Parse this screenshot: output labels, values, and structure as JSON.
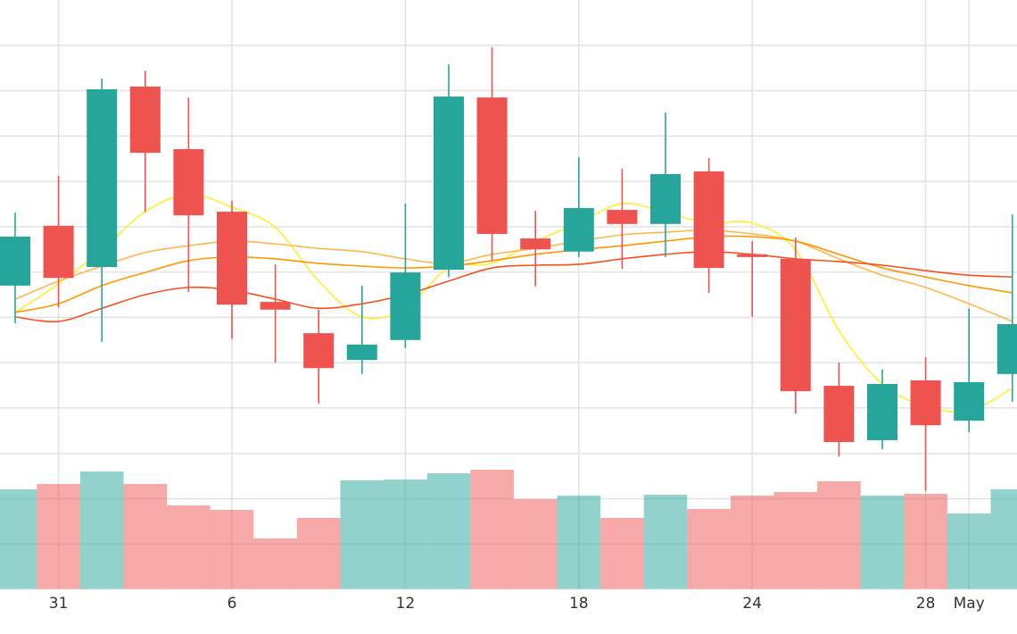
{
  "chart_data": {
    "type": "candlestick",
    "categories": [
      null,
      "31",
      null,
      null,
      null,
      "6",
      null,
      null,
      null,
      "12",
      null,
      null,
      null,
      "18",
      null,
      null,
      null,
      "24",
      null,
      null,
      null,
      "28",
      "May",
      null
    ],
    "open": [
      4.7,
      6.02,
      5.11,
      9.09,
      7.71,
      6.33,
      4.34,
      3.65,
      3.06,
      3.5,
      5.05,
      8.85,
      5.74,
      5.45,
      6.37,
      6.06,
      7.22,
      5.39,
      5.29,
      2.49,
      1.29,
      2.61,
      1.72,
      2.75
    ],
    "high": [
      6.31,
      7.12,
      9.27,
      9.44,
      8.85,
      6.57,
      5.17,
      4.17,
      4.7,
      6.51,
      9.58,
      9.96,
      6.35,
      7.53,
      7.28,
      8.52,
      7.51,
      5.68,
      5.76,
      3.0,
      2.85,
      3.12,
      4.2,
      6.27
    ],
    "low": [
      3.87,
      4.22,
      3.46,
      6.33,
      4.56,
      3.52,
      3.0,
      2.1,
      2.75,
      3.32,
      4.89,
      5.25,
      4.68,
      5.33,
      5.07,
      5.33,
      4.54,
      4.01,
      1.88,
      0.93,
      1.09,
      0.17,
      1.47,
      2.14
    ],
    "close": [
      5.78,
      4.87,
      9.03,
      7.63,
      6.25,
      4.28,
      4.17,
      2.88,
      3.4,
      4.99,
      8.87,
      5.84,
      5.5,
      6.41,
      6.06,
      7.16,
      5.09,
      5.33,
      2.37,
      1.25,
      2.53,
      1.62,
      2.57,
      3.85
    ],
    "up_color": "#26a69a",
    "down_color": "#ef5350",
    "ylim": [
      -2,
      11
    ],
    "yticks": [
      -1,
      0,
      1,
      2,
      3,
      4,
      5,
      6,
      7,
      8,
      9,
      10
    ],
    "grid": true,
    "volume": {
      "axis": "y2",
      "opacity": 0.5,
      "values": [
        11.2,
        11.8,
        13.2,
        11.8,
        9.4,
        8.9,
        5.7,
        8.0,
        12.2,
        12.3,
        13.0,
        13.4,
        10.1,
        10.5,
        8.0,
        10.6,
        9.0,
        10.5,
        10.9,
        12.1,
        10.5,
        10.7,
        8.5,
        11.2
      ]
    },
    "y2lim": [
      0,
      66
    ],
    "series": [
      {
        "color": "#ffee33",
        "values": [
          4.11,
          4.74,
          5.49,
          6.33,
          6.71,
          6.43,
          5.98,
          4.8,
          4.01,
          4.2,
          5.09,
          5.19,
          5.68,
          6.08,
          6.51,
          6.31,
          6.08,
          6.08,
          5.49,
          3.71,
          2.53,
          2.04,
          1.94,
          2.43
        ]
      },
      {
        "color": "#ffb74d",
        "values": [
          4.4,
          4.8,
          5.13,
          5.43,
          5.58,
          5.68,
          5.62,
          5.52,
          5.45,
          5.29,
          5.19,
          5.39,
          5.52,
          5.68,
          5.82,
          5.88,
          5.92,
          5.84,
          5.68,
          5.29,
          4.93,
          4.66,
          4.3,
          3.91
        ]
      },
      {
        "color": "#ff9800",
        "values": [
          4.11,
          4.3,
          4.7,
          4.99,
          5.25,
          5.33,
          5.29,
          5.19,
          5.13,
          5.09,
          5.13,
          5.25,
          5.39,
          5.49,
          5.58,
          5.68,
          5.78,
          5.78,
          5.68,
          5.39,
          5.09,
          4.89,
          4.7,
          4.54
        ]
      },
      {
        "color": "#f4511e",
        "values": [
          4.01,
          3.91,
          4.2,
          4.5,
          4.66,
          4.6,
          4.4,
          4.2,
          4.3,
          4.5,
          4.8,
          5.09,
          5.15,
          5.17,
          5.29,
          5.39,
          5.45,
          5.39,
          5.29,
          5.23,
          5.15,
          5.03,
          4.93,
          4.89
        ]
      }
    ]
  }
}
